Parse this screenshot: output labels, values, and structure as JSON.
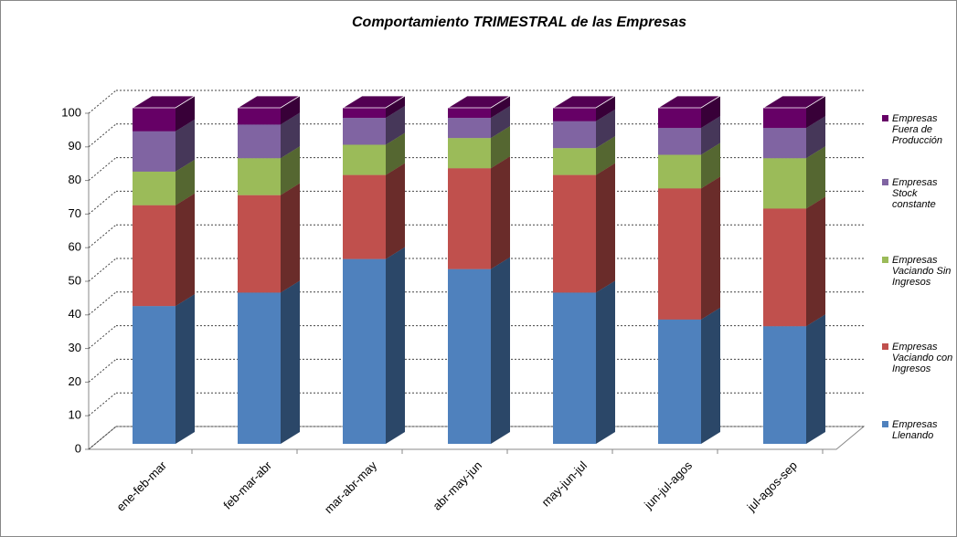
{
  "chart_data": {
    "type": "bar3d-stacked",
    "title": "Comportamiento TRIMESTRAL de las Empresas",
    "categories": [
      "ene-feb-mar",
      "feb-mar-abr",
      "mar-abr-may",
      "abr-may-jun",
      "may-jun-jul",
      "jun-jul-agos",
      "jul-agos-sep"
    ],
    "series": [
      {
        "name": "Empresas Llenando",
        "color": "#4f81bd",
        "values": [
          41,
          45,
          55,
          52,
          45,
          37,
          35
        ]
      },
      {
        "name": "Empresas Vaciando con Ingresos",
        "color": "#c0504d",
        "values": [
          30,
          29,
          25,
          30,
          35,
          39,
          35
        ]
      },
      {
        "name": "Empresas Vaciando Sin Ingresos",
        "color": "#9bbb59",
        "values": [
          10,
          11,
          9,
          9,
          8,
          10,
          15
        ]
      },
      {
        "name": "Empresas Stock constante",
        "color": "#8064a2",
        "values": [
          12,
          10,
          8,
          6,
          8,
          8,
          9
        ]
      },
      {
        "name": "Empresas Fuera de Producción",
        "color": "#660066",
        "values": [
          7,
          5,
          3,
          3,
          4,
          6,
          6
        ]
      }
    ],
    "ylim": [
      0,
      100
    ],
    "yticks": [
      0,
      10,
      20,
      30,
      40,
      50,
      60,
      70,
      80,
      90,
      100
    ],
    "grid": true,
    "legend": "right"
  }
}
